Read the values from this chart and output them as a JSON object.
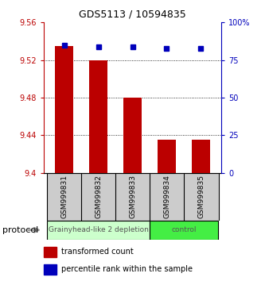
{
  "title": "GDS5113 / 10594835",
  "samples": [
    "GSM999831",
    "GSM999832",
    "GSM999833",
    "GSM999834",
    "GSM999835"
  ],
  "transformed_counts": [
    9.535,
    9.52,
    9.48,
    9.435,
    9.435
  ],
  "percentile_ranks": [
    85,
    84,
    84,
    83,
    83
  ],
  "ylim_left": [
    9.4,
    9.56
  ],
  "ylim_right": [
    0,
    100
  ],
  "yticks_left": [
    9.4,
    9.44,
    9.48,
    9.52,
    9.56
  ],
  "yticks_right": [
    0,
    25,
    50,
    75,
    100
  ],
  "bar_color": "#bb0000",
  "dot_color": "#0000bb",
  "groups": [
    {
      "label": "Grainyhead-like 2 depletion",
      "indices": [
        0,
        1,
        2
      ],
      "color": "#ccffcc"
    },
    {
      "label": "control",
      "indices": [
        3,
        4
      ],
      "color": "#44ee44"
    }
  ],
  "protocol_label": "protocol",
  "legend_bar_label": "transformed count",
  "legend_dot_label": "percentile rank within the sample",
  "bar_width": 0.55,
  "tick_label_fontsize": 7,
  "title_fontsize": 9,
  "sample_fontsize": 6.5,
  "group_fontsize": 6.5,
  "legend_fontsize": 7,
  "protocol_fontsize": 8
}
